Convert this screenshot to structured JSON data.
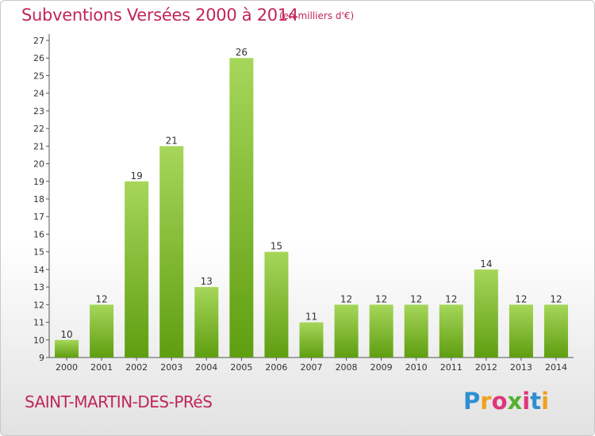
{
  "header": {
    "title": "Subventions Versées 2000 à 2014",
    "subtitle": "(en milliers d'€)"
  },
  "footer": {
    "commune": "SAINT-MARTIN-DES-PRéS",
    "logo_letters": [
      "P",
      "r",
      "o",
      "x",
      "i",
      "t",
      "i"
    ]
  },
  "colors": {
    "title": "#c0255c",
    "bar_light": "#a6d65a",
    "bar_dark": "#5f9e10",
    "logo": [
      "#2e8fd0",
      "#f0a020",
      "#e0357a",
      "#55b030",
      "#e0357a",
      "#2e8fd0",
      "#f0a020"
    ]
  },
  "chart_data": {
    "type": "bar",
    "categories": [
      "2000",
      "2001",
      "2002",
      "2003",
      "2004",
      "2005",
      "2006",
      "2007",
      "2008",
      "2009",
      "2010",
      "2011",
      "2012",
      "2013",
      "2014"
    ],
    "values": [
      10,
      12,
      19,
      21,
      13,
      26,
      15,
      11,
      12,
      12,
      12,
      12,
      14,
      12,
      12
    ],
    "data_labels": [
      "10",
      "12",
      "19",
      "21",
      "13",
      "26",
      "15",
      "11",
      "12",
      "12",
      "12",
      "12",
      "14",
      "12",
      "12"
    ],
    "y_ticks": [
      "9",
      "10",
      "11",
      "12",
      "13",
      "14",
      "15",
      "16",
      "17",
      "18",
      "19",
      "20",
      "21",
      "22",
      "23",
      "24",
      "25",
      "26",
      "27"
    ],
    "ylim": [
      9,
      27
    ],
    "grid": false,
    "legend": "none"
  }
}
